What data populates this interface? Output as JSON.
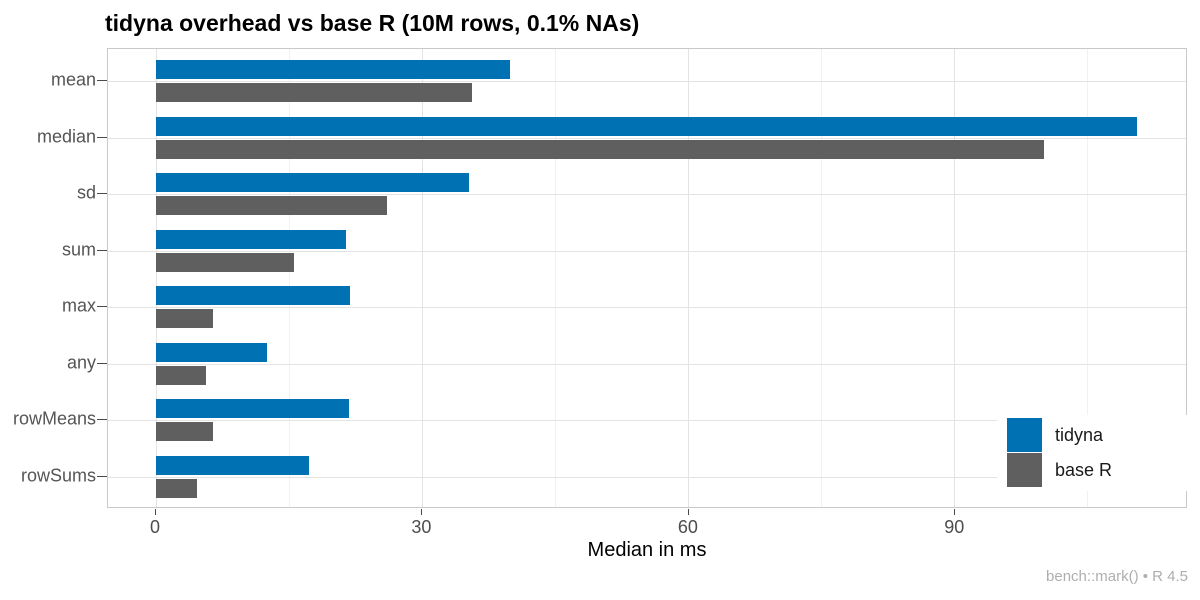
{
  "title": "tidyna overhead vs base R (10M rows, 0.1% NAs)",
  "caption": "bench::mark() • R 4.5",
  "colors": {
    "tidyna": "#0072b3",
    "base_r": "#5f5f5f",
    "grid_major": "#e3e3e3",
    "grid_minor": "#f1f1f1",
    "panel_border": "#c9c9c9",
    "axis_text": "#4d4d4d",
    "background": "#ffffff"
  },
  "chart_data": {
    "type": "bar",
    "orientation": "horizontal",
    "title": "tidyna overhead vs base R (10M rows, 0.1% NAs)",
    "xlabel": "Median in ms",
    "ylabel": "",
    "caption": "bench::mark() • R 4.5",
    "categories": [
      "mean",
      "median",
      "sd",
      "sum",
      "max",
      "any",
      "rowMeans",
      "rowSums"
    ],
    "series": [
      {
        "name": "tidyna",
        "color": "#0072b3",
        "values": [
          40.0,
          110.7,
          35.3,
          21.4,
          21.9,
          12.5,
          21.8,
          17.3
        ]
      },
      {
        "name": "base R",
        "color": "#5f5f5f",
        "values": [
          35.7,
          100.2,
          26.1,
          15.6,
          6.5,
          5.7,
          6.5,
          4.6
        ]
      }
    ],
    "x_ticks": [
      0,
      30,
      60,
      90
    ],
    "x_minor_ticks": [
      15,
      45,
      75,
      105
    ],
    "xlim": [
      -5.4,
      116.2
    ],
    "grid": true,
    "legend_position": "inside-bottom-right"
  }
}
